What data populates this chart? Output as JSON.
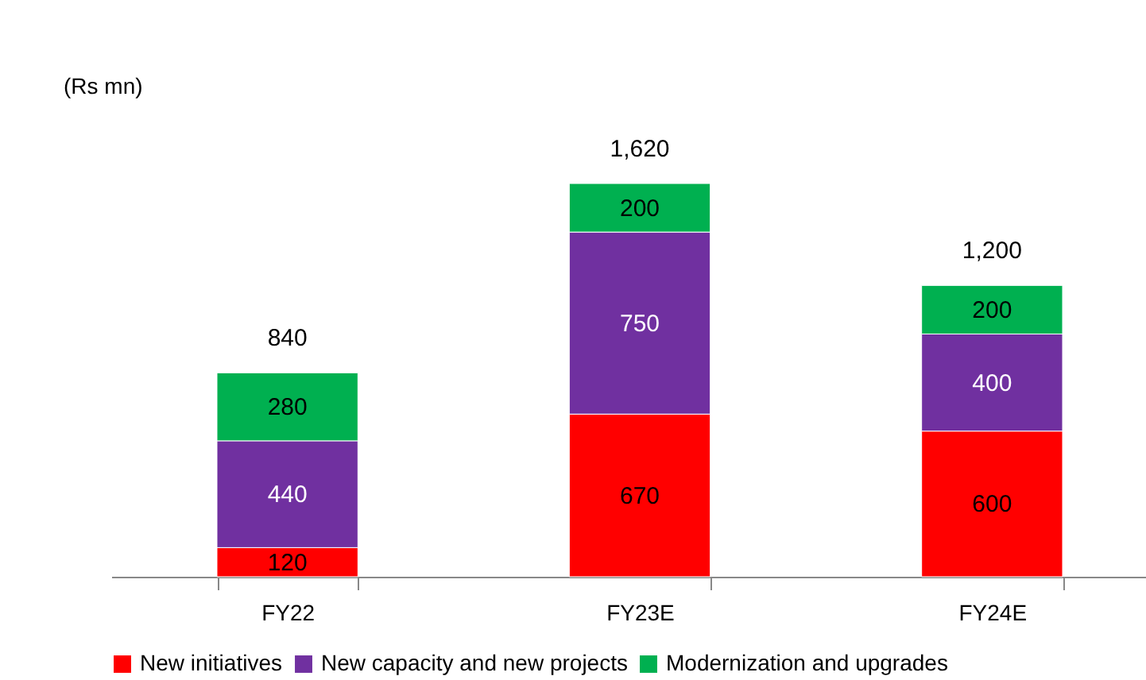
{
  "chart_data": {
    "type": "bar",
    "stacked": true,
    "annotations": [
      "(Rs mn)"
    ],
    "categories": [
      "FY22",
      "FY23E",
      "FY24E"
    ],
    "series": [
      {
        "name": "New initiatives",
        "color": "#ff0000",
        "values": [
          120,
          670,
          600
        ]
      },
      {
        "name": "New capacity and new projects",
        "color": "#7030a0",
        "values": [
          440,
          750,
          400
        ]
      },
      {
        "name": "Modernization and upgrades",
        "color": "#00b050",
        "values": [
          280,
          200,
          200
        ]
      }
    ],
    "data_labels": true,
    "totals": [
      "840",
      "1,620",
      "1,200"
    ],
    "legend": "bottom",
    "grid": false
  }
}
